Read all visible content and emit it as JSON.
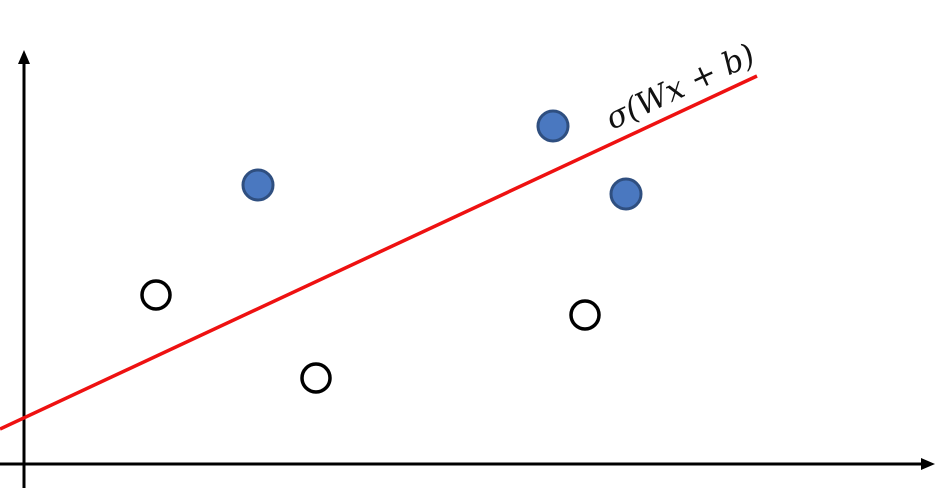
{
  "diagram": {
    "boundary_label": "σ(Wx + b)",
    "colors": {
      "axis": "#000000",
      "boundary": "#ee1111",
      "positive_fill": "#4a78c0",
      "positive_stroke": "#2f4f80",
      "negative_fill": "#ffffff",
      "negative_stroke": "#000000"
    },
    "points": {
      "positive_class": "filled-blue-circle",
      "negative_class": "hollow-black-circle"
    }
  }
}
